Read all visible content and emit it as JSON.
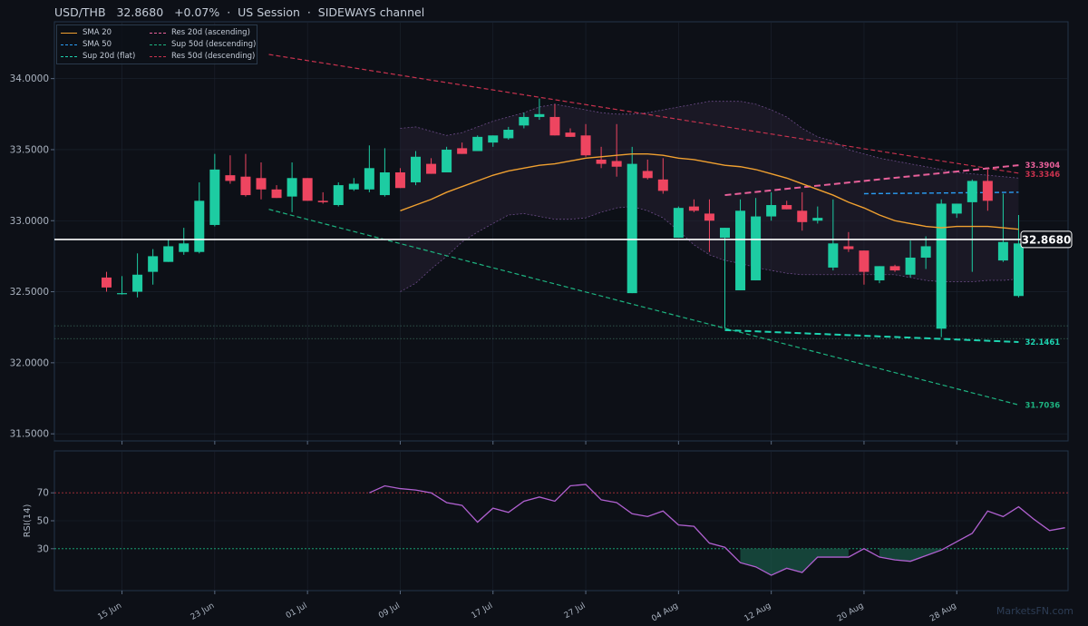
{
  "header": {
    "symbol": "USD/THB",
    "price": "32.8680",
    "change": "+0.07%",
    "session": "US Session",
    "regime": "SIDEWAYS channel"
  },
  "legend": [
    {
      "label": "SMA 20",
      "color": "#f0a030",
      "style": "solid"
    },
    {
      "label": "SMA 50",
      "color": "#2a9df4",
      "style": "dashed"
    },
    {
      "label": "Sup 20d (flat)",
      "color": "#1dd3b0",
      "style": "dashed"
    },
    {
      "label": "Res 20d (ascending)",
      "color": "#e8609a",
      "style": "dashed"
    },
    {
      "label": "Sup 50d (descending)",
      "color": "#1db380",
      "style": "dashed"
    },
    {
      "label": "Res 50d (descending)",
      "color": "#c8324e",
      "style": "dashed"
    }
  ],
  "watermark": "MarketsFN.com",
  "colors": {
    "up": "#1dcca2",
    "down": "#ee4560",
    "bg": "#0d1017",
    "grid": "#1c2430"
  },
  "chart_data": {
    "type": "candlestick",
    "x_labels": [
      "15 Jun",
      "23 Jun",
      "01 Jul",
      "09 Jul",
      "17 Jul",
      "27 Jul",
      "04 Aug",
      "12 Aug",
      "20 Aug",
      "28 Aug"
    ],
    "x_label_index": [
      1,
      7,
      13,
      19,
      25,
      31,
      37,
      43,
      49,
      55
    ],
    "y_ticks": [
      "34.0000",
      "33.5000",
      "33.0000",
      "32.5000",
      "32.0000",
      "31.5000"
    ],
    "ylim": [
      31.45,
      34.4
    ],
    "current_price": 32.868,
    "current_price_label": "32.8680",
    "candles": [
      [
        32.6,
        32.64,
        32.5,
        32.53
      ],
      [
        32.49,
        32.61,
        32.48,
        32.49
      ],
      [
        32.5,
        32.77,
        32.46,
        32.62
      ],
      [
        32.64,
        32.8,
        32.55,
        32.75
      ],
      [
        32.71,
        32.87,
        32.71,
        32.82
      ],
      [
        32.78,
        32.95,
        32.76,
        32.84
      ],
      [
        32.78,
        33.27,
        32.77,
        33.14
      ],
      [
        32.97,
        33.47,
        32.96,
        33.36
      ],
      [
        33.32,
        33.46,
        33.26,
        33.28
      ],
      [
        33.31,
        33.47,
        33.17,
        33.18
      ],
      [
        33.3,
        33.41,
        33.15,
        33.22
      ],
      [
        33.22,
        33.25,
        33.16,
        33.16
      ],
      [
        33.17,
        33.41,
        33.06,
        33.3
      ],
      [
        33.3,
        33.3,
        33.14,
        33.14
      ],
      [
        33.14,
        33.2,
        33.12,
        33.13
      ],
      [
        33.11,
        33.27,
        33.1,
        33.25
      ],
      [
        33.22,
        33.3,
        33.21,
        33.26
      ],
      [
        33.22,
        33.53,
        33.2,
        33.37
      ],
      [
        33.18,
        33.51,
        33.17,
        33.34
      ],
      [
        33.34,
        33.37,
        33.23,
        33.23
      ],
      [
        33.27,
        33.49,
        33.25,
        33.45
      ],
      [
        33.4,
        33.44,
        33.33,
        33.33
      ],
      [
        33.34,
        33.52,
        33.34,
        33.5
      ],
      [
        33.51,
        33.55,
        33.47,
        33.47
      ],
      [
        33.49,
        33.6,
        33.49,
        33.59
      ],
      [
        33.55,
        33.6,
        33.52,
        33.6
      ],
      [
        33.58,
        33.66,
        33.57,
        33.64
      ],
      [
        33.67,
        33.76,
        33.65,
        33.73
      ],
      [
        33.73,
        33.86,
        33.71,
        33.75
      ],
      [
        33.73,
        33.82,
        33.6,
        33.6
      ],
      [
        33.62,
        33.65,
        33.59,
        33.59
      ],
      [
        33.6,
        33.68,
        33.45,
        33.46
      ],
      [
        33.43,
        33.52,
        33.37,
        33.4
      ],
      [
        33.42,
        33.68,
        33.31,
        33.38
      ],
      [
        32.49,
        33.52,
        32.49,
        33.4
      ],
      [
        33.35,
        33.43,
        33.29,
        33.3
      ],
      [
        33.29,
        33.44,
        33.19,
        33.21
      ],
      [
        32.88,
        33.1,
        32.88,
        33.09
      ],
      [
        33.1,
        33.15,
        33.06,
        33.07
      ],
      [
        33.05,
        33.15,
        32.78,
        33.0
      ],
      [
        32.88,
        32.95,
        32.24,
        32.95
      ],
      [
        32.51,
        33.15,
        32.51,
        33.07
      ],
      [
        32.58,
        33.16,
        32.58,
        33.03
      ],
      [
        33.03,
        33.2,
        33.0,
        33.11
      ],
      [
        33.11,
        33.14,
        33.08,
        33.08
      ],
      [
        33.07,
        33.2,
        32.93,
        32.99
      ],
      [
        33.0,
        33.1,
        32.98,
        33.02
      ],
      [
        32.67,
        33.15,
        32.65,
        32.84
      ],
      [
        32.82,
        32.92,
        32.78,
        32.8
      ],
      [
        32.79,
        32.79,
        32.55,
        32.64
      ],
      [
        32.58,
        32.68,
        32.56,
        32.68
      ],
      [
        32.68,
        32.69,
        32.64,
        32.65
      ],
      [
        32.62,
        32.86,
        32.6,
        32.74
      ],
      [
        32.74,
        32.89,
        32.66,
        32.82
      ],
      [
        32.24,
        33.15,
        32.18,
        33.12
      ],
      [
        33.05,
        33.12,
        33.02,
        33.12
      ],
      [
        33.13,
        33.29,
        32.64,
        33.28
      ],
      [
        33.28,
        33.36,
        33.07,
        33.14
      ],
      [
        32.72,
        33.19,
        32.71,
        32.85
      ],
      [
        32.47,
        33.04,
        32.46,
        32.84
      ]
    ],
    "sma20": {
      "start": 19,
      "values": [
        33.07,
        33.11,
        33.15,
        33.2,
        33.24,
        33.28,
        33.32,
        33.35,
        33.37,
        33.39,
        33.4,
        33.42,
        33.44,
        33.45,
        33.46,
        33.47,
        33.47,
        33.46,
        33.44,
        33.43,
        33.41,
        33.39,
        33.38,
        33.36,
        33.33,
        33.3,
        33.26,
        33.22,
        33.18,
        33.13,
        33.09,
        33.04,
        33.0,
        32.98,
        32.96,
        32.95,
        32.96,
        32.96,
        32.96,
        32.95,
        32.94
      ]
    },
    "bollinger": {
      "start": 19,
      "upper": [
        33.65,
        33.66,
        33.63,
        33.6,
        33.62,
        33.66,
        33.7,
        33.73,
        33.76,
        33.8,
        33.82,
        33.8,
        33.78,
        33.76,
        33.75,
        33.75,
        33.76,
        33.78,
        33.8,
        33.82,
        33.84,
        33.84,
        33.84,
        33.82,
        33.78,
        33.73,
        33.65,
        33.59,
        33.56,
        33.5,
        33.47,
        33.44,
        33.42,
        33.4,
        33.38,
        33.36,
        33.34,
        33.33,
        33.32,
        33.31,
        33.3
      ],
      "lower": [
        32.5,
        32.56,
        32.66,
        32.75,
        32.85,
        32.92,
        32.98,
        33.04,
        33.05,
        33.03,
        33.01,
        33.01,
        33.02,
        33.06,
        33.09,
        33.1,
        33.07,
        33.02,
        32.93,
        32.83,
        32.76,
        32.72,
        32.7,
        32.67,
        32.65,
        32.63,
        32.62,
        32.62,
        32.62,
        32.62,
        32.62,
        32.62,
        32.62,
        32.6,
        32.58,
        32.57,
        32.57,
        32.57,
        32.58,
        32.58,
        32.59
      ]
    },
    "sma50": {
      "from": 49,
      "to": 59,
      "y1": 33.19,
      "y2": 33.2
    },
    "trendlines": [
      {
        "name": "Res 50d (descending)",
        "x1": 10.5,
        "y1": 34.17,
        "x2": 59,
        "y2": 33.3346,
        "label": "33.3346",
        "color": "#c8324e"
      },
      {
        "name": "Sup 50d (descending)",
        "x1": 10.5,
        "y1": 33.08,
        "x2": 59,
        "y2": 31.7036,
        "label": "31.7036",
        "color": "#1db380"
      },
      {
        "name": "Res 20d (ascending)",
        "x1": 40,
        "y1": 33.18,
        "x2": 59,
        "y2": 33.3904,
        "label": "33.3904",
        "color": "#e8609a"
      },
      {
        "name": "Sup 20d (flat)",
        "x1": 40,
        "y1": 32.23,
        "x2": 59,
        "y2": 32.1461,
        "label": "32.1461",
        "color": "#1dd3b0"
      }
    ],
    "hlines": [
      32.26,
      32.17
    ],
    "rsi": {
      "label": "RSI(14)",
      "ticks": [
        70,
        50,
        30
      ],
      "ylim": [
        0,
        100
      ],
      "start": 17,
      "values": [
        70,
        75,
        73,
        72,
        70,
        63,
        61,
        49,
        59,
        56,
        64,
        67,
        64,
        75,
        76,
        65,
        63,
        55,
        53,
        57,
        47,
        46,
        34,
        31,
        20,
        17,
        11,
        16,
        13,
        24,
        24,
        24,
        30,
        24,
        22,
        21,
        25,
        29,
        35,
        41,
        57,
        53,
        60,
        51,
        43,
        45
      ]
    }
  }
}
